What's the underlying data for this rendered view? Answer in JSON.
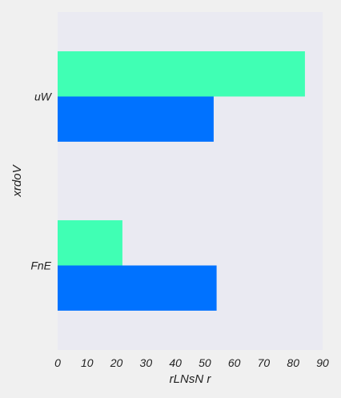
{
  "chart_data": {
    "type": "bar",
    "orientation": "horizontal",
    "title": "",
    "xlabel": "rLNsN r",
    "ylabel": "xrdoV",
    "categories": [
      "uW",
      "FnE"
    ],
    "series": [
      {
        "values": [
          84,
          22
        ],
        "color": "#40ffb4"
      },
      {
        "values": [
          53,
          54
        ],
        "color": "#0072ff"
      }
    ],
    "xlim": [
      0,
      90
    ],
    "xticks": [
      "0",
      "10",
      "20",
      "30",
      "40",
      "50",
      "60",
      "70",
      "80",
      "90"
    ],
    "grid": false,
    "legend": "none",
    "plot_background": "#eaeaf2"
  }
}
